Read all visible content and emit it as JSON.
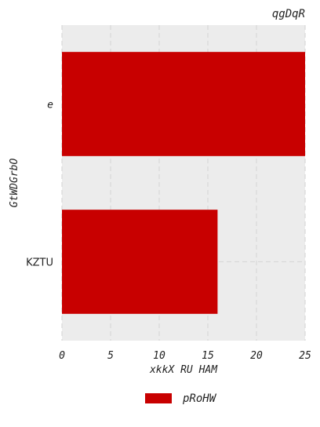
{
  "chart_data": {
    "type": "bar",
    "orientation": "horizontal",
    "title": "qgDqR",
    "xlabel": "xkkX RU HAM",
    "ylabel": "GtWDGrbO",
    "categories": [
      "e",
      "KZTU"
    ],
    "series": [
      {
        "name": "pRoHW",
        "values": [
          25,
          16
        ],
        "color": "#c80000"
      }
    ],
    "xlim": [
      0,
      25
    ],
    "xticks": [
      0,
      5,
      10,
      15,
      20,
      25
    ],
    "grid": true,
    "legend": "bottom-center"
  },
  "colors": {
    "plot_background": "#ececec",
    "grid": "#d8d8d8",
    "bar": "#c80000"
  }
}
